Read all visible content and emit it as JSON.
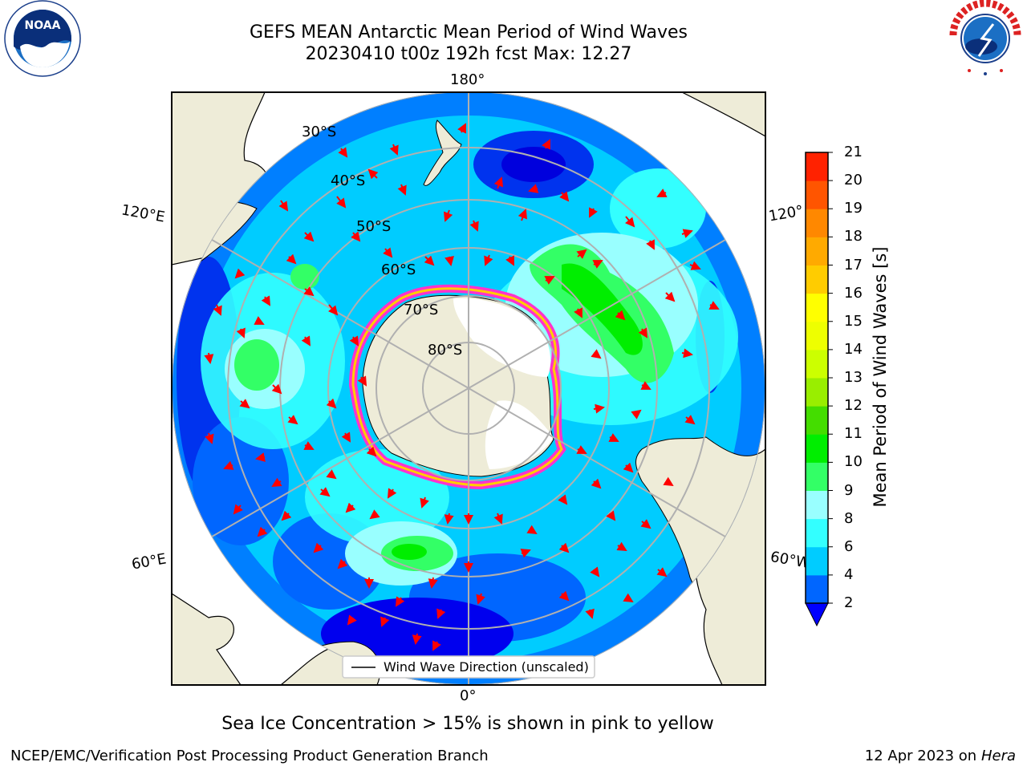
{
  "title": {
    "line1": "GEFS MEAN Antarctic Mean Period of Wind Waves",
    "line2": "20230410 t00z 192h fcst   Max: 12.27"
  },
  "map": {
    "lon_labels": {
      "top": "180°",
      "bottom": "0°",
      "left_upper": "120°E",
      "left_lower": "60°E",
      "right_upper": "120°",
      "right_lower": "60°W"
    },
    "lat_labels": [
      "30°S",
      "40°S",
      "50°S",
      "60°S",
      "70°S",
      "80°S"
    ],
    "legend": "Wind Wave Direction (unscaled)",
    "arrow_color": "#ff0000",
    "land_color": "#eeecd8",
    "ice_edge_colors": [
      "#ff33cc",
      "#ffcc00"
    ]
  },
  "colorbar": {
    "label": "Mean Period of Wind Waves [s]",
    "ticks": [
      "2",
      "4",
      "6",
      "8",
      "9",
      "10",
      "11",
      "12",
      "13",
      "14",
      "15",
      "16",
      "17",
      "18",
      "19",
      "20",
      "21"
    ],
    "colors": [
      "#0066ff",
      "#00ccff",
      "#33ffff",
      "#99ffff",
      "#33ff66",
      "#00ee00",
      "#44dd00",
      "#99ee00",
      "#ccff00",
      "#eeff00",
      "#ffff00",
      "#ffcc00",
      "#ffaa00",
      "#ff8800",
      "#ff5500",
      "#ff2200",
      "#ff0000"
    ],
    "extend_color": "#0000ff"
  },
  "footer": {
    "note": "Sea Ice Concentration > 15% is shown in pink to yellow",
    "credit_left": "NCEP/EMC/Verification Post Processing Product Generation Branch",
    "date": "12 Apr 2023 on",
    "machine": "Hera"
  },
  "logos": {
    "noaa": "NOAA",
    "nws": "NATIONAL WEATHER SERVICE"
  }
}
